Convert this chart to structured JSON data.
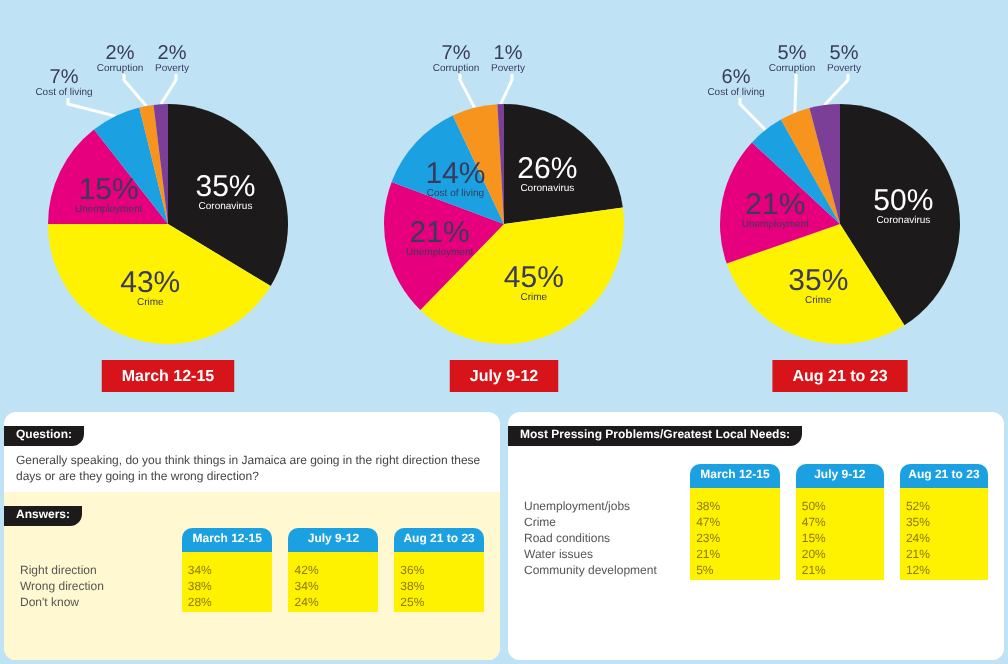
{
  "chart_data": [
    {
      "type": "pie",
      "title": "March 12-15",
      "categories": [
        "Coronavirus",
        "Crime",
        "Unemployment",
        "Cost of living",
        "Corruption",
        "Poverty"
      ],
      "values": [
        35,
        43,
        15,
        7,
        2,
        2
      ],
      "value_labels": [
        "35%",
        "43%",
        "15%",
        "7%",
        "2%",
        "2%"
      ],
      "colors": [
        "#1c1a1b",
        "#fff200",
        "#e6007e",
        "#1ba1e2",
        "#f7941d",
        "#7b3f98"
      ]
    },
    {
      "type": "pie",
      "title": "July 9-12",
      "categories": [
        "Coronavirus",
        "Crime",
        "Unemployment",
        "Cost of living",
        "Corruption",
        "Poverty"
      ],
      "values": [
        26,
        45,
        21,
        14,
        7,
        1
      ],
      "value_labels": [
        "26%",
        "45%",
        "21%",
        "14%",
        "7%",
        "1%"
      ],
      "colors": [
        "#1c1a1b",
        "#fff200",
        "#e6007e",
        "#1ba1e2",
        "#f7941d",
        "#7b3f98"
      ]
    },
    {
      "type": "pie",
      "title": "Aug 21 to 23",
      "categories": [
        "Coronavirus",
        "Crime",
        "Unemployment",
        "Cost of living",
        "Corruption",
        "Poverty"
      ],
      "values": [
        50,
        35,
        21,
        6,
        5,
        5
      ],
      "value_labels": [
        "50%",
        "35%",
        "21%",
        "6%",
        "5%",
        "5%"
      ],
      "colors": [
        "#1c1a1b",
        "#fff200",
        "#e6007e",
        "#1ba1e2",
        "#f7941d",
        "#7b3f98"
      ]
    },
    {
      "type": "other",
      "title": "Question:",
      "subtitle": "Generally speaking, do you think things in Jamaica are going in the right direction these days or are they going in the wrong direction?",
      "annotations": [
        "Answers:"
      ],
      "categories": [
        "March 12-15",
        "July 9-12",
        "Aug 21 to 23"
      ],
      "y_categories": [
        "Right direction",
        "Wrong direction",
        "Don't know"
      ],
      "cell_labels": [
        [
          "34%",
          "42%",
          "36%"
        ],
        [
          "38%",
          "34%",
          "38%"
        ],
        [
          "28%",
          "24%",
          "25%"
        ]
      ]
    },
    {
      "type": "other",
      "title": "Most Pressing Problems/Greatest Local Needs:",
      "categories": [
        "March 12-15",
        "July 9-12",
        "Aug 21 to 23"
      ],
      "y_categories": [
        "Unemployment/jobs",
        "Crime",
        "Road conditions",
        "Water issues",
        "Community development"
      ],
      "cell_labels": [
        [
          "38%",
          "50%",
          "52%"
        ],
        [
          "47%",
          "47%",
          "35%"
        ],
        [
          "23%",
          "15%",
          "24%"
        ],
        [
          "21%",
          "20%",
          "21%"
        ],
        [
          "5%",
          "21%",
          "12%"
        ]
      ]
    }
  ]
}
